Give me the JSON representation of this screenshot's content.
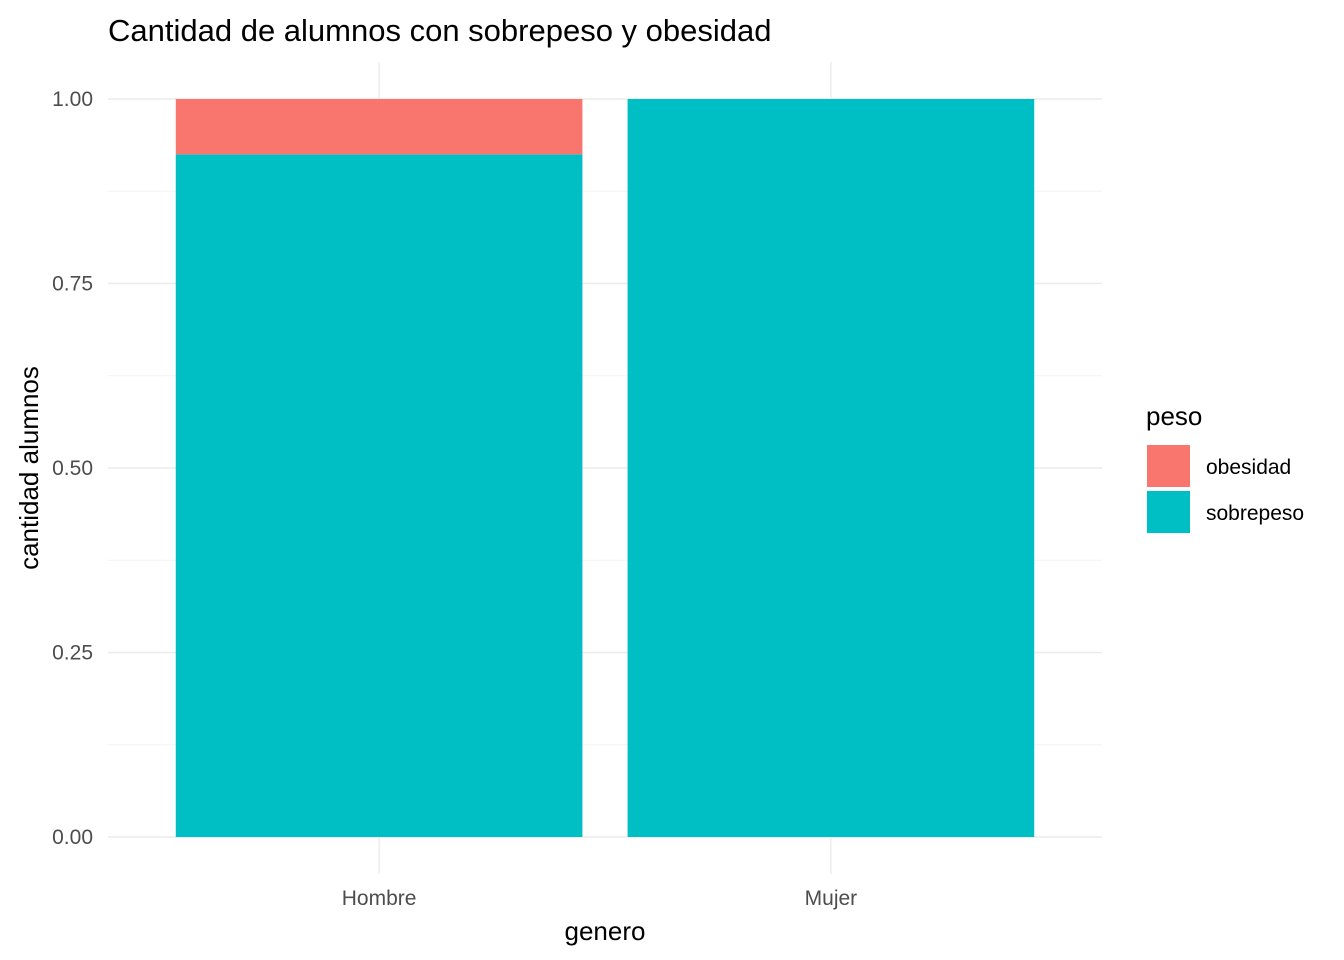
{
  "chart_data": {
    "type": "bar",
    "stacked": true,
    "title": "Cantidad de alumnos con sobrepeso y obesidad",
    "xlabel": "genero",
    "ylabel": "cantidad alumnos",
    "categories": [
      "Hombre",
      "Mujer"
    ],
    "series": [
      {
        "name": "obesidad",
        "values": [
          0.075,
          0
        ],
        "color": "#F8766D"
      },
      {
        "name": "sobrepeso",
        "values": [
          0.925,
          1.0
        ],
        "color": "#00BFC4"
      }
    ],
    "ylim": [
      0,
      1.0
    ],
    "yticks": [
      "0.00",
      "0.25",
      "0.50",
      "0.75",
      "1.00"
    ],
    "legend": {
      "title": "peso",
      "position": "right"
    },
    "grid": true
  }
}
